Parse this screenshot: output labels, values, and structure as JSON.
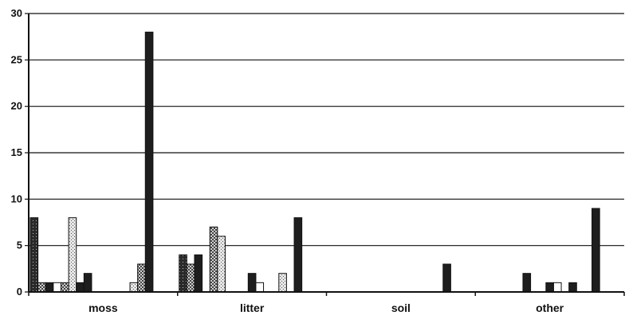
{
  "chart_data": {
    "type": "bar",
    "title": "",
    "xlabel": "",
    "ylabel": "",
    "ylim": [
      0,
      30
    ],
    "yticks": [
      "0",
      "5",
      "10",
      "15",
      "20",
      "25",
      "30"
    ],
    "grid": true,
    "legend": "none",
    "categories": [
      "moss",
      "litter",
      "soil",
      "other"
    ],
    "bar_slots": 19,
    "series": [
      {
        "pattern": "dark-dotted",
        "values": [
          8,
          4,
          0,
          0
        ]
      },
      {
        "pattern": "checker",
        "values": [
          1,
          3,
          0,
          0
        ]
      },
      {
        "pattern": "dark",
        "values": [
          1,
          4,
          0,
          0
        ]
      },
      {
        "pattern": "white",
        "values": [
          1,
          0,
          0,
          0
        ]
      },
      {
        "pattern": "checker",
        "values": [
          1,
          7,
          0,
          0
        ]
      },
      {
        "pattern": "light-dotted",
        "values": [
          8,
          6,
          0,
          0
        ]
      },
      {
        "pattern": "dark",
        "values": [
          1,
          0,
          0,
          2
        ]
      },
      {
        "pattern": "dark",
        "values": [
          2,
          0,
          0,
          0
        ]
      },
      {
        "pattern": "dark",
        "values": [
          0,
          0,
          0,
          0
        ]
      },
      {
        "pattern": "dark",
        "values": [
          0,
          2,
          0,
          1
        ]
      },
      {
        "pattern": "white",
        "values": [
          0,
          1,
          0,
          1
        ]
      },
      {
        "pattern": "dark",
        "values": [
          0,
          0,
          0,
          0
        ]
      },
      {
        "pattern": "dark",
        "values": [
          0,
          0,
          0,
          1
        ]
      },
      {
        "pattern": "light-dotted",
        "values": [
          1,
          2,
          0,
          0
        ]
      },
      {
        "pattern": "checker",
        "values": [
          3,
          0,
          0,
          0
        ]
      },
      {
        "pattern": "dark",
        "values": [
          28,
          8,
          3,
          9
        ]
      }
    ]
  }
}
